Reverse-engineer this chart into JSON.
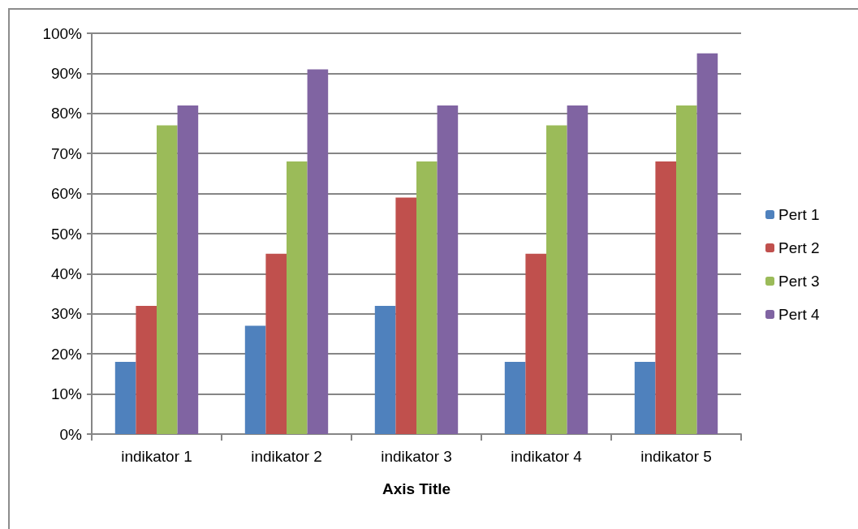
{
  "chart_data": {
    "type": "bar",
    "xlabel": "Axis Title",
    "categories": [
      "indikator 1",
      "indikator 2",
      "indikator 3",
      "indikator 4",
      "indikator 5"
    ],
    "series": [
      {
        "name": "Pert 1",
        "color": "#4f81bd",
        "values": [
          18,
          27,
          32,
          18,
          18
        ]
      },
      {
        "name": "Pert 2",
        "color": "#c0504d",
        "values": [
          32,
          45,
          59,
          45,
          68
        ]
      },
      {
        "name": "Pert 3",
        "color": "#9bbb59",
        "values": [
          77,
          68,
          68,
          77,
          82
        ]
      },
      {
        "name": "Pert 4",
        "color": "#8064a2",
        "values": [
          82,
          91,
          82,
          82,
          95
        ]
      }
    ],
    "ylim": [
      0,
      100
    ],
    "yticks": [
      {
        "value": 0,
        "label": "0%"
      },
      {
        "value": 10,
        "label": "10%"
      },
      {
        "value": 20,
        "label": "20%"
      },
      {
        "value": 30,
        "label": "30%"
      },
      {
        "value": 40,
        "label": "40%"
      },
      {
        "value": 50,
        "label": "50%"
      },
      {
        "value": 60,
        "label": "60%"
      },
      {
        "value": 70,
        "label": "70%"
      },
      {
        "value": 80,
        "label": "80%"
      },
      {
        "value": 90,
        "label": "90%"
      },
      {
        "value": 100,
        "label": "100%"
      }
    ],
    "grid": "y",
    "legend": "right"
  }
}
